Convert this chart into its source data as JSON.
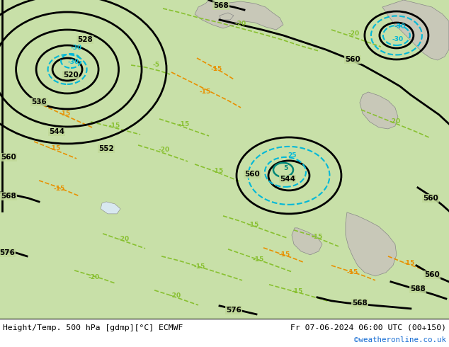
{
  "title_left": "Height/Temp. 500 hPa [gdmp][°C] ECMWF",
  "title_right": "Fr 07-06-2024 06:00 UTC (00+150)",
  "credit": "©weatheronline.co.uk",
  "bg_green": "#b8d898",
  "bg_green2": "#c8e0a8",
  "land_grey": "#c8c8b8",
  "coast_color": "#888888",
  "z500_color": "#000000",
  "green_temp": "#88c030",
  "orange_temp": "#e89000",
  "cyan_regen": "#00b8d8",
  "teal_z850": "#008878"
}
